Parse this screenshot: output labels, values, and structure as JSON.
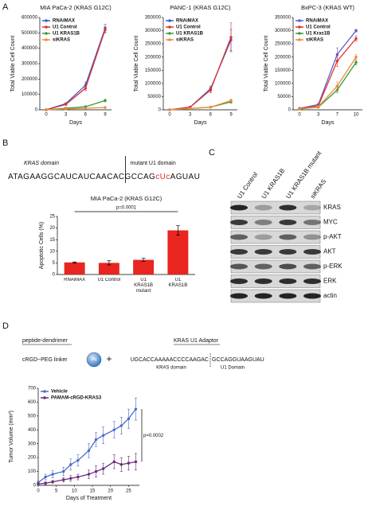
{
  "panels": {
    "a": "A",
    "b": "B",
    "c": "C",
    "d": "D"
  },
  "sequence": {
    "left_domain": "KRAS domain",
    "right_domain": "mutant U1 domain",
    "parts": [
      "ATAGAAGGCAUCAUCAACAC",
      "GCCAG",
      "cUc",
      "AGUAU"
    ]
  },
  "blot": {
    "lanes": [
      "U1 Control",
      "U1 KRAS1B",
      "U1 KRAS1B mutant",
      "siKRAS"
    ],
    "rows": [
      "KRAS",
      "MYC",
      "p-AKT",
      "AKT",
      "p-ERK",
      "ERK",
      "actin"
    ]
  },
  "construct": {
    "peptide_label": "peptide-dendrimer",
    "adaptor_label": "KRAS U1 Adaptor",
    "linker": "cRGD~PEG linker",
    "dendrimer": "PN",
    "plus": "+",
    "kras_seq": "UGCACCAAAAACCCCAAGAC",
    "u1_seq": "GCCAGGUAAGUAU",
    "kras_domain": "KRAS domain",
    "u1_domain": "U1 Domain"
  },
  "chart_data": [
    {
      "type": "line",
      "title": "MIA PaCa-2 (KRAS G12C)",
      "xlabel": "Days",
      "ylabel": "Total Viable Cell Count",
      "categories": [
        "0",
        "3",
        "6",
        "9"
      ],
      "ylim": [
        0,
        600000
      ],
      "yticks": [
        0,
        100000,
        200000,
        300000,
        400000,
        500000,
        600000
      ],
      "legend": "upper left",
      "series": [
        {
          "name": "RNAiMAX",
          "color": "#3b5bcc",
          "values": [
            0,
            40000,
            160000,
            530000
          ],
          "errors": [
            0,
            5000,
            20000,
            25000
          ]
        },
        {
          "name": "U1 Control",
          "color": "#e0302a",
          "values": [
            0,
            35000,
            140000,
            520000
          ],
          "errors": [
            0,
            5000,
            15000,
            20000
          ]
        },
        {
          "name": "U1 KRAS1B",
          "color": "#3a9a3a",
          "values": [
            0,
            10000,
            20000,
            60000
          ],
          "errors": [
            0,
            2000,
            5000,
            8000
          ]
        },
        {
          "name": "siKRAS",
          "color": "#f08a3c",
          "values": [
            0,
            5000,
            10000,
            15000
          ],
          "errors": [
            0,
            1000,
            2000,
            3000
          ]
        }
      ]
    },
    {
      "type": "line",
      "title": "PANC-1 (KRAS G12C)",
      "xlabel": "Days",
      "ylabel": "Total Viable Cell Count",
      "categories": [
        "0",
        "3",
        "6",
        "9"
      ],
      "ylim": [
        0,
        350000
      ],
      "yticks": [
        0,
        50000,
        100000,
        150000,
        200000,
        250000,
        300000,
        350000
      ],
      "legend": "upper left",
      "series": [
        {
          "name": "RNAiMAX",
          "color": "#3b5bcc",
          "values": [
            0,
            10000,
            80000,
            265000
          ],
          "errors": [
            0,
            3000,
            10000,
            40000
          ]
        },
        {
          "name": "U1 Control",
          "color": "#e0302a",
          "values": [
            0,
            10000,
            75000,
            275000
          ],
          "errors": [
            0,
            3000,
            10000,
            55000
          ]
        },
        {
          "name": "U1 KRAS1B",
          "color": "#3a9a3a",
          "values": [
            0,
            5000,
            10000,
            30000
          ],
          "errors": [
            0,
            1000,
            2000,
            5000
          ]
        },
        {
          "name": "siKRAS",
          "color": "#f08a3c",
          "values": [
            0,
            5000,
            10000,
            35000
          ],
          "errors": [
            0,
            1000,
            2000,
            5000
          ]
        }
      ]
    },
    {
      "type": "line",
      "title": "BxPC-3 (KRAS WT)",
      "xlabel": "Days",
      "ylabel": "Total Viable Cell Count",
      "categories": [
        "0",
        "3",
        "7",
        "10"
      ],
      "ylim": [
        0,
        350000
      ],
      "yticks": [
        0,
        50000,
        100000,
        150000,
        200000,
        250000,
        300000,
        350000
      ],
      "legend": "upper left",
      "series": [
        {
          "name": "RNAiMAX",
          "color": "#5a5bd0",
          "values": [
            5000,
            20000,
            210000,
            300000
          ],
          "errors": [
            1000,
            3000,
            25000,
            5000
          ]
        },
        {
          "name": "U1 Control",
          "color": "#e0302a",
          "values": [
            5000,
            15000,
            185000,
            270000
          ],
          "errors": [
            1000,
            3000,
            20000,
            10000
          ]
        },
        {
          "name": "U1 Kras1B",
          "color": "#3a9a3a",
          "values": [
            3000,
            10000,
            75000,
            180000
          ],
          "errors": [
            500,
            2000,
            10000,
            10000
          ]
        },
        {
          "name": "siKRAS",
          "color": "#f08a3c",
          "values": [
            3000,
            12000,
            90000,
            200000
          ],
          "errors": [
            500,
            2000,
            15000,
            10000
          ]
        }
      ]
    },
    {
      "type": "bar",
      "title": "MIA PaCa-2 (KRAS G12C)",
      "ylabel": "Apoptotic Cells (%)",
      "categories": [
        "RNAiMAX",
        "U1 Control",
        "U1 KRAS1B mutant",
        "U1 KRAS1B"
      ],
      "values": [
        5.2,
        5.0,
        6.3,
        19
      ],
      "errors": [
        0.2,
        0.9,
        0.7,
        2
      ],
      "color": "#e8261f",
      "ylim": [
        0,
        25
      ],
      "yticks": [
        0,
        5,
        10,
        15,
        20,
        25
      ],
      "annotation": "p=0.0001"
    },
    {
      "type": "line",
      "xlabel": "Days of Treatment",
      "ylabel": "Tumor Volume (mm³)",
      "x": [
        0,
        2,
        4,
        7,
        9,
        11,
        14,
        16,
        18,
        21,
        23,
        25,
        27
      ],
      "xlim": [
        0,
        28
      ],
      "xticks": [
        0,
        5,
        10,
        15,
        20,
        25
      ],
      "ylim": [
        0,
        700
      ],
      "yticks": [
        0,
        100,
        200,
        300,
        400,
        500,
        600,
        700
      ],
      "legend": "upper left",
      "annotation": "p=0.0002",
      "series": [
        {
          "name": "Vehicle",
          "color": "#4a6bc8",
          "values": [
            20,
            60,
            80,
            100,
            150,
            180,
            250,
            330,
            360,
            400,
            430,
            480,
            550
          ],
          "errors": [
            10,
            20,
            25,
            30,
            40,
            40,
            50,
            50,
            60,
            60,
            60,
            70,
            80
          ]
        },
        {
          "name": "PAMAM-cRGD-KRAS3",
          "color": "#6a2a7a",
          "values": [
            10,
            15,
            25,
            40,
            50,
            60,
            80,
            100,
            120,
            170,
            150,
            160,
            170
          ],
          "errors": [
            5,
            10,
            10,
            15,
            20,
            20,
            30,
            40,
            40,
            50,
            50,
            50,
            60
          ]
        }
      ]
    }
  ]
}
